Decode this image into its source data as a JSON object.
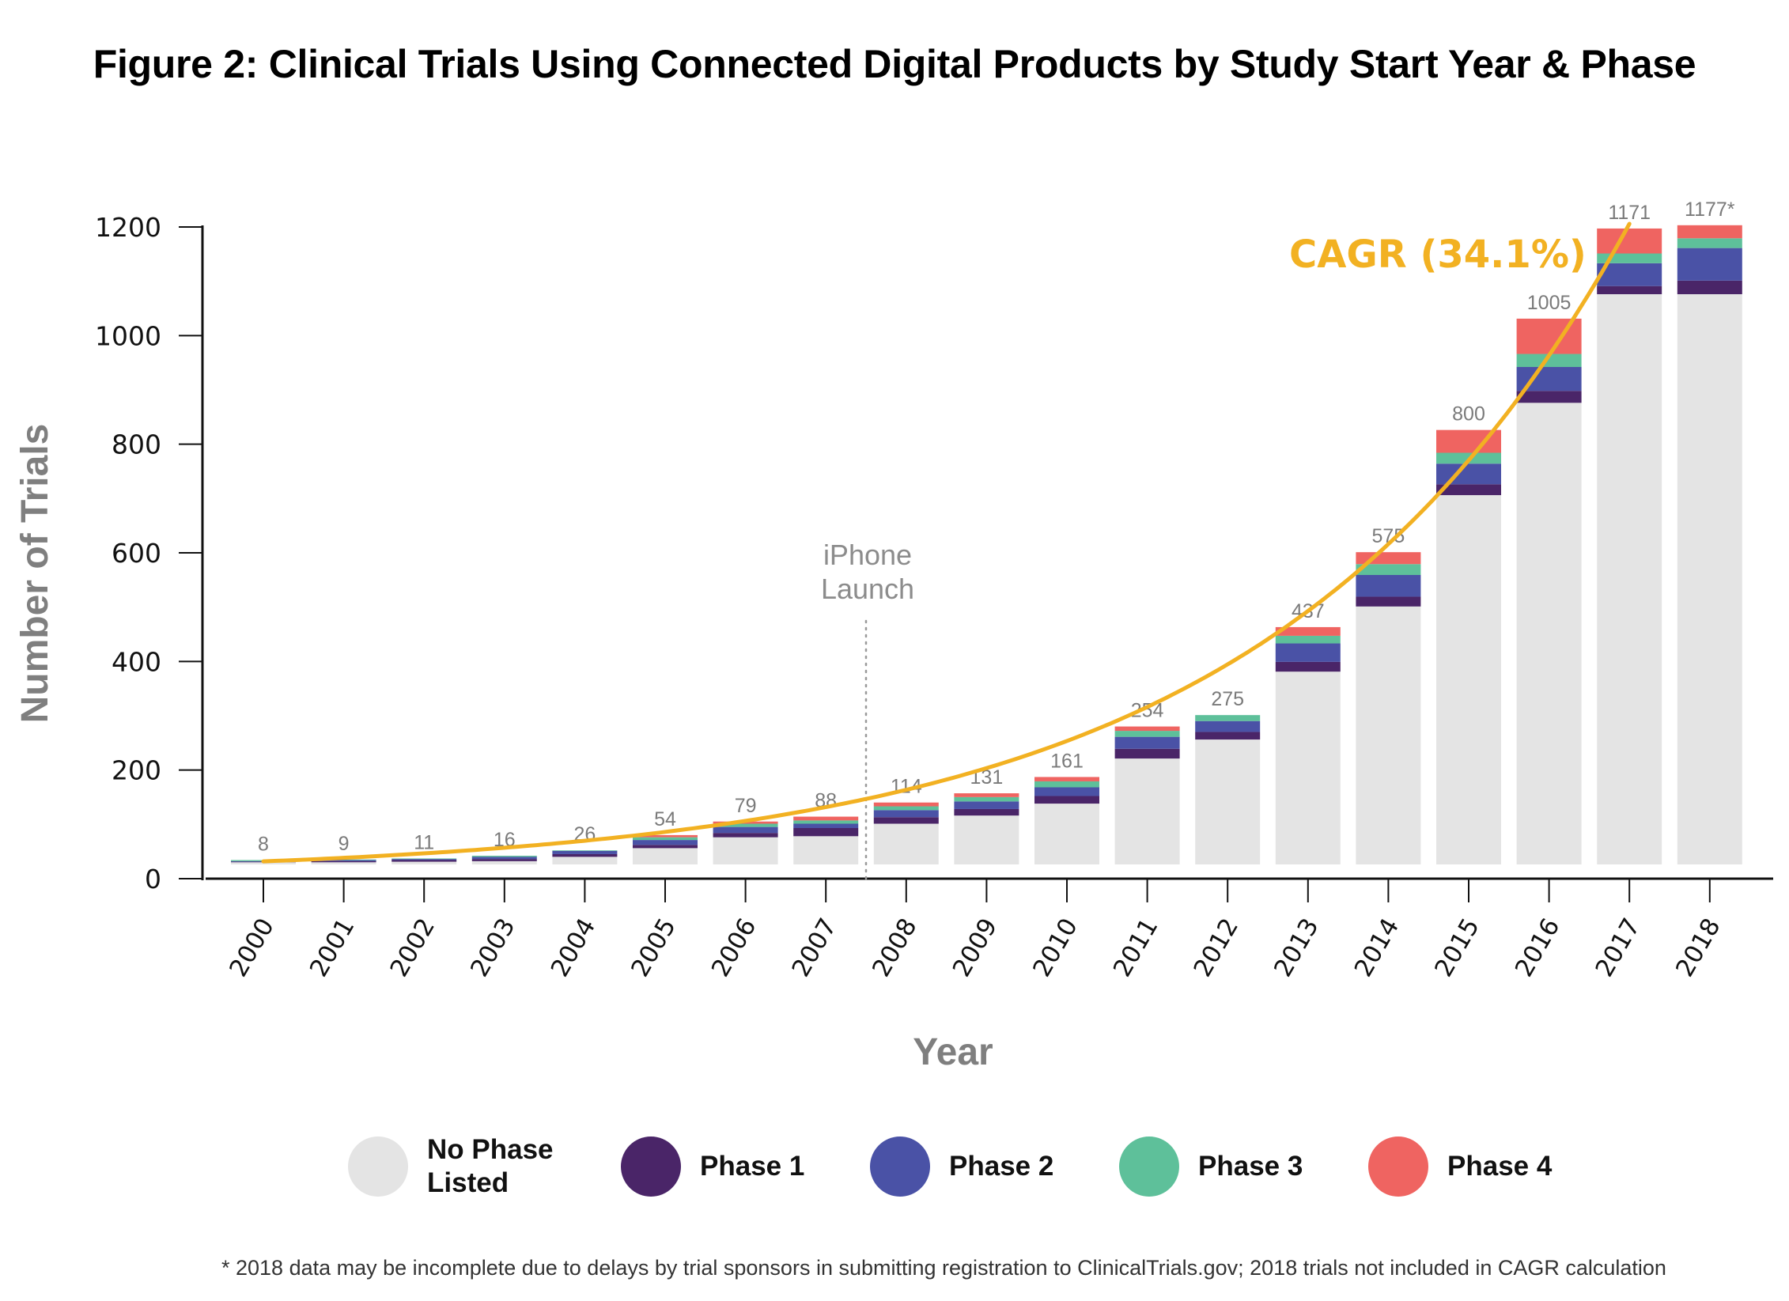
{
  "title": "Figure 2: Clinical Trials Using Connected Digital Products by Study Start Year & Phase",
  "footnote": "* 2018 data may be incomplete due to delays by trial sponsors in submitting registration to ClinicalTrials.gov; 2018 trials not included in CAGR calculation",
  "chart_data": {
    "type": "bar",
    "stacked": true,
    "title": "Figure 2: Clinical Trials Using Connected Digital Products by Study Start Year & Phase",
    "xlabel": "Year",
    "ylabel": "Number of Trials",
    "ylim": [
      0,
      1200
    ],
    "yticks": [
      "0",
      "200",
      "400",
      "600",
      "800",
      "1000",
      "1200"
    ],
    "ytick_values": [
      0,
      200,
      400,
      600,
      800,
      1000,
      1200
    ],
    "grid": false,
    "legend_position": "bottom",
    "categories": [
      "2000",
      "2001",
      "2002",
      "2003",
      "2004",
      "2005",
      "2006",
      "2007",
      "2008",
      "2009",
      "2010",
      "2011",
      "2012",
      "2013",
      "2014",
      "2015",
      "2016",
      "2017",
      "2018"
    ],
    "total_labels": [
      "8",
      "9",
      "11",
      "16",
      "26",
      "54",
      "79",
      "88",
      "114",
      "131",
      "161",
      "254",
      "275",
      "437",
      "575",
      "800",
      "1005",
      "1171",
      "1177*"
    ],
    "totals": [
      8,
      9,
      11,
      16,
      26,
      54,
      79,
      88,
      114,
      131,
      161,
      254,
      275,
      437,
      575,
      800,
      1005,
      1171,
      1177
    ],
    "series": [
      {
        "name": "No Phase Listed",
        "color": "#e4e4e4",
        "values": [
          4,
          4,
          5,
          6,
          14,
          30,
          50,
          52,
          75,
          90,
          112,
          195,
          230,
          355,
          475,
          680,
          850,
          1050,
          1050
        ]
      },
      {
        "name": "Phase 1",
        "color": "#4a2568",
        "values": [
          1,
          2,
          3,
          4,
          5,
          6,
          8,
          15,
          12,
          12,
          14,
          18,
          14,
          18,
          18,
          20,
          22,
          15,
          25
        ]
      },
      {
        "name": "Phase 2",
        "color": "#4a52a6",
        "values": [
          1,
          2,
          2,
          4,
          6,
          9,
          11,
          8,
          13,
          14,
          16,
          22,
          20,
          34,
          40,
          38,
          44,
          42,
          60
        ]
      },
      {
        "name": "Phase 3",
        "color": "#5ec09a",
        "values": [
          2,
          1,
          1,
          2,
          1,
          5,
          6,
          6,
          7,
          8,
          11,
          11,
          11,
          14,
          20,
          20,
          24,
          18,
          18
        ]
      },
      {
        "name": "Phase 4",
        "color": "#ef6461",
        "values": [
          0,
          0,
          0,
          0,
          0,
          4,
          4,
          7,
          7,
          7,
          8,
          8,
          0,
          16,
          22,
          42,
          65,
          46,
          24
        ]
      }
    ],
    "trend_line": {
      "label": "CAGR (34.1%)",
      "cagr_percent": 34.1,
      "color": "#f2b122",
      "years": [
        "2000",
        "2017"
      ],
      "start_value": 8,
      "end_value": 1171
    },
    "annotations": [
      {
        "text_lines": [
          "iPhone",
          "Launch"
        ],
        "position_between": [
          "2007",
          "2008"
        ],
        "style": "dotted-vertical-line"
      }
    ]
  }
}
